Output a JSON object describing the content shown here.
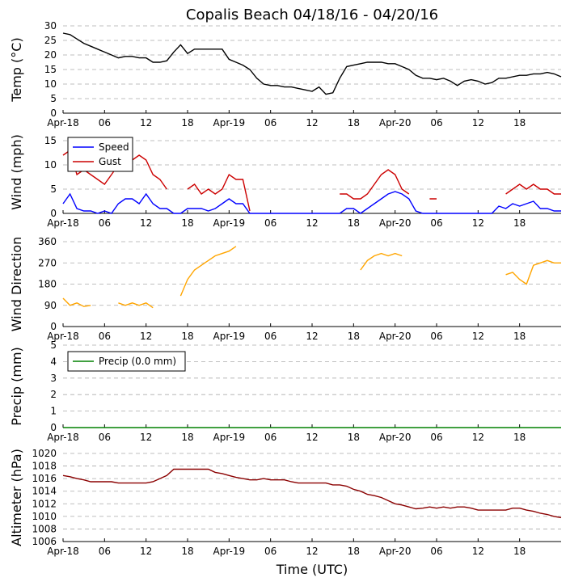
{
  "chart_data": [
    {
      "type": "line",
      "title": "Copalis Beach 04/18/16 - 04/20/16",
      "ylabel": "Temp (°C)",
      "xlim": [
        0,
        72
      ],
      "xticks": [
        {
          "value": 0,
          "label": "Apr-18"
        },
        {
          "value": 6,
          "label": "06"
        },
        12,
        18,
        {
          "value": 24,
          "label": "Apr-19"
        },
        {
          "value": 30,
          "label": "06"
        },
        {
          "value": 36,
          "label": "12"
        },
        {
          "value": 42,
          "label": "18"
        },
        {
          "value": 48,
          "label": "Apr-20"
        },
        {
          "value": 54,
          "label": "06"
        },
        {
          "value": 60,
          "label": "12"
        },
        {
          "value": 66,
          "label": "18"
        }
      ],
      "ylim": [
        0,
        30
      ],
      "yticks": [
        0,
        5,
        10,
        15,
        20,
        25,
        30
      ],
      "grid": true,
      "x": [
        0,
        1,
        2,
        3,
        4,
        5,
        6,
        7,
        8,
        9,
        10,
        11,
        12,
        13,
        14,
        15,
        16,
        17,
        18,
        19,
        20,
        21,
        22,
        23,
        24,
        25,
        26,
        27,
        28,
        29,
        30,
        31,
        32,
        33,
        34,
        35,
        36,
        37,
        38,
        39,
        40,
        41,
        42,
        43,
        44,
        45,
        46,
        47,
        48,
        49,
        50,
        51,
        52,
        53,
        54,
        55,
        56,
        57,
        58,
        59,
        60,
        61,
        62,
        63,
        64,
        65,
        66,
        67,
        68,
        69,
        70,
        71,
        72
      ],
      "series": [
        {
          "color": "#000000",
          "values": [
            27.5,
            27,
            25.5,
            24,
            23,
            22,
            21,
            20,
            19,
            19.5,
            19.5,
            19,
            19,
            17.5,
            17.5,
            18,
            21,
            23.5,
            20.5,
            22,
            22,
            22,
            22,
            22,
            18.5,
            17.5,
            16.5,
            15,
            12,
            10,
            9.5,
            9.5,
            9,
            9,
            8.5,
            8,
            7.5,
            9,
            6.5,
            7,
            12,
            16,
            16.5,
            17,
            17.5,
            17.5,
            17.5,
            17,
            17,
            16,
            15,
            13,
            12,
            12,
            11.5,
            12,
            11,
            9.5,
            11,
            11.5,
            11,
            10,
            10.5,
            12,
            12,
            12.5,
            13,
            13,
            13.5,
            13.5,
            14,
            13.5,
            12.5
          ]
        }
      ]
    },
    {
      "type": "line",
      "ylabel": "Wind (mph)",
      "legend": "upper left",
      "xlim": [
        0,
        72
      ],
      "xticks": [
        {
          "value": 0,
          "label": "Apr-18"
        },
        {
          "value": 6,
          "label": "06"
        },
        12,
        18,
        {
          "value": 24,
          "label": "Apr-19"
        },
        {
          "value": 30,
          "label": "06"
        },
        {
          "value": 36,
          "label": "12"
        },
        {
          "value": 42,
          "label": "18"
        },
        {
          "value": 48,
          "label": "Apr-20"
        },
        {
          "value": 54,
          "label": "06"
        },
        {
          "value": 60,
          "label": "12"
        },
        {
          "value": 66,
          "label": "18"
        }
      ],
      "ylim": [
        0,
        17
      ],
      "yticks": [
        0,
        5,
        10,
        15
      ],
      "grid": true,
      "x": [
        0,
        1,
        2,
        3,
        4,
        5,
        6,
        7,
        8,
        9,
        10,
        11,
        12,
        13,
        14,
        15,
        16,
        17,
        18,
        19,
        20,
        21,
        22,
        23,
        24,
        25,
        26,
        27,
        28,
        29,
        30,
        31,
        32,
        33,
        34,
        35,
        36,
        37,
        38,
        39,
        40,
        41,
        42,
        43,
        44,
        45,
        46,
        47,
        48,
        49,
        50,
        51,
        52,
        53,
        54,
        55,
        56,
        57,
        58,
        59,
        60,
        61,
        62,
        63,
        64,
        65,
        66,
        67,
        68,
        69,
        70,
        71,
        72
      ],
      "series": [
        {
          "name": "Speed",
          "color": "#0000ff",
          "values": [
            2,
            4,
            1,
            0.5,
            0.5,
            0,
            0.5,
            0,
            2,
            3,
            3,
            2,
            4,
            2,
            1,
            1,
            0,
            0,
            1,
            1,
            1,
            0.5,
            1,
            2,
            3,
            2,
            2,
            0,
            0,
            0,
            0,
            0,
            0,
            0,
            0,
            0,
            0,
            0,
            0,
            0,
            0,
            1,
            1,
            0,
            1,
            2,
            3,
            4,
            4.5,
            4,
            3,
            0.5,
            0,
            0,
            0,
            0,
            0,
            0,
            0,
            0,
            0,
            0,
            0,
            1.5,
            1,
            2,
            1.5,
            2,
            2.5,
            1,
            1,
            0.5,
            0.5
          ]
        },
        {
          "name": "Gust",
          "color": "#cc0000",
          "values": [
            12,
            13,
            8,
            9,
            8,
            7,
            6,
            8,
            10,
            9,
            11,
            12,
            11,
            8,
            7,
            5,
            null,
            null,
            5,
            6,
            4,
            5,
            4,
            5,
            8,
            7,
            7,
            0.5,
            null,
            null,
            null,
            null,
            null,
            null,
            null,
            null,
            null,
            null,
            null,
            null,
            4,
            4,
            3,
            3,
            4,
            6,
            8,
            9,
            8,
            5,
            4,
            null,
            null,
            3,
            3,
            null,
            null,
            null,
            null,
            null,
            null,
            null,
            null,
            null,
            4,
            5,
            6,
            5,
            6,
            5,
            5,
            4,
            4
          ]
        }
      ]
    },
    {
      "type": "line",
      "ylabel": "Wind Direction",
      "xlim": [
        0,
        72
      ],
      "xticks": [
        {
          "value": 0,
          "label": "Apr-18"
        },
        {
          "value": 6,
          "label": "06"
        },
        12,
        18,
        {
          "value": 24,
          "label": "Apr-19"
        },
        {
          "value": 30,
          "label": "06"
        },
        {
          "value": 36,
          "label": "12"
        },
        {
          "value": 42,
          "label": "18"
        },
        {
          "value": 48,
          "label": "Apr-20"
        },
        {
          "value": 54,
          "label": "06"
        },
        {
          "value": 60,
          "label": "12"
        },
        {
          "value": 66,
          "label": "18"
        }
      ],
      "ylim": [
        0,
        360
      ],
      "yticks": [
        0,
        90,
        180,
        270,
        360
      ],
      "grid": true,
      "x": [
        0,
        1,
        2,
        3,
        4,
        5,
        6,
        7,
        8,
        9,
        10,
        11,
        12,
        13,
        14,
        15,
        16,
        17,
        18,
        19,
        20,
        21,
        22,
        23,
        24,
        25,
        26,
        27,
        28,
        29,
        30,
        31,
        32,
        33,
        34,
        35,
        36,
        37,
        38,
        39,
        40,
        41,
        42,
        43,
        44,
        45,
        46,
        47,
        48,
        49,
        50,
        51,
        52,
        53,
        54,
        55,
        56,
        57,
        58,
        59,
        60,
        61,
        62,
        63,
        64,
        65,
        66,
        67,
        68,
        69,
        70,
        71,
        72
      ],
      "series": [
        {
          "color": "#ffa500",
          "values": [
            120,
            90,
            100,
            85,
            90,
            null,
            null,
            null,
            100,
            90,
            100,
            90,
            100,
            80,
            null,
            null,
            null,
            130,
            200,
            240,
            260,
            280,
            300,
            310,
            320,
            340,
            null,
            null,
            null,
            null,
            null,
            null,
            null,
            null,
            null,
            null,
            null,
            null,
            null,
            null,
            230,
            null,
            null,
            240,
            280,
            300,
            310,
            300,
            310,
            300,
            null,
            null,
            null,
            null,
            null,
            null,
            null,
            null,
            null,
            null,
            null,
            null,
            null,
            null,
            220,
            230,
            200,
            180,
            260,
            270,
            280,
            270,
            270
          ]
        }
      ]
    },
    {
      "type": "line",
      "ylabel": "Precip (mm)",
      "legend": "upper left",
      "xlim": [
        0,
        72
      ],
      "xticks": [
        {
          "value": 0,
          "label": "Apr-18"
        },
        {
          "value": 6,
          "label": "06"
        },
        12,
        18,
        {
          "value": 24,
          "label": "Apr-19"
        },
        {
          "value": 30,
          "label": "06"
        },
        {
          "value": 36,
          "label": "12"
        },
        {
          "value": 42,
          "label": "18"
        },
        {
          "value": 48,
          "label": "Apr-20"
        },
        {
          "value": 54,
          "label": "06"
        },
        {
          "value": 60,
          "label": "12"
        },
        {
          "value": 66,
          "label": "18"
        }
      ],
      "ylim": [
        0,
        5
      ],
      "yticks": [
        0,
        1,
        2,
        3,
        4,
        5
      ],
      "grid": true,
      "x": [
        0,
        72
      ],
      "series": [
        {
          "name": "Precip (0.0 mm)",
          "color": "#008000",
          "values": [
            0,
            0
          ]
        }
      ]
    },
    {
      "type": "line",
      "ylabel": "Altimeter (hPa)",
      "xlabel": "Time (UTC)",
      "xlim": [
        0,
        72
      ],
      "xticks": [
        {
          "value": 0,
          "label": "Apr-18"
        },
        {
          "value": 6,
          "label": "06"
        },
        12,
        18,
        {
          "value": 24,
          "label": "Apr-19"
        },
        {
          "value": 30,
          "label": "06"
        },
        {
          "value": 36,
          "label": "12"
        },
        {
          "value": 42,
          "label": "18"
        },
        {
          "value": 48,
          "label": "Apr-20"
        },
        {
          "value": 54,
          "label": "06"
        },
        {
          "value": 60,
          "label": "12"
        },
        {
          "value": 66,
          "label": "18"
        }
      ],
      "ylim": [
        1006,
        1020
      ],
      "yticks": [
        1006,
        1008,
        1010,
        1012,
        1014,
        1016,
        1018,
        1020
      ],
      "grid": true,
      "x": [
        0,
        1,
        2,
        3,
        4,
        5,
        6,
        7,
        8,
        9,
        10,
        11,
        12,
        13,
        14,
        15,
        16,
        17,
        18,
        19,
        20,
        21,
        22,
        23,
        24,
        25,
        26,
        27,
        28,
        29,
        30,
        31,
        32,
        33,
        34,
        35,
        36,
        37,
        38,
        39,
        40,
        41,
        42,
        43,
        44,
        45,
        46,
        47,
        48,
        49,
        50,
        51,
        52,
        53,
        54,
        55,
        56,
        57,
        58,
        59,
        60,
        61,
        62,
        63,
        64,
        65,
        66,
        67,
        68,
        69,
        70,
        71,
        72
      ],
      "series": [
        {
          "color": "#8b0000",
          "values": [
            1016.5,
            1016.3,
            1016,
            1015.8,
            1015.5,
            1015.5,
            1015.5,
            1015.5,
            1015.3,
            1015.3,
            1015.3,
            1015.3,
            1015.3,
            1015.5,
            1016,
            1016.5,
            1017.5,
            1017.5,
            1017.5,
            1017.5,
            1017.5,
            1017.5,
            1017,
            1016.8,
            1016.5,
            1016.2,
            1016,
            1015.8,
            1015.8,
            1016,
            1015.8,
            1015.8,
            1015.8,
            1015.5,
            1015.3,
            1015.3,
            1015.3,
            1015.3,
            1015.3,
            1015,
            1015,
            1014.8,
            1014.3,
            1014,
            1013.5,
            1013.3,
            1013,
            1012.5,
            1012,
            1011.8,
            1011.5,
            1011.2,
            1011.3,
            1011.5,
            1011.3,
            1011.5,
            1011.3,
            1011.5,
            1011.5,
            1011.3,
            1011,
            1011,
            1011,
            1011,
            1011,
            1011.3,
            1011.3,
            1011,
            1010.8,
            1010.5,
            1010.3,
            1010,
            1009.8
          ]
        }
      ]
    }
  ]
}
